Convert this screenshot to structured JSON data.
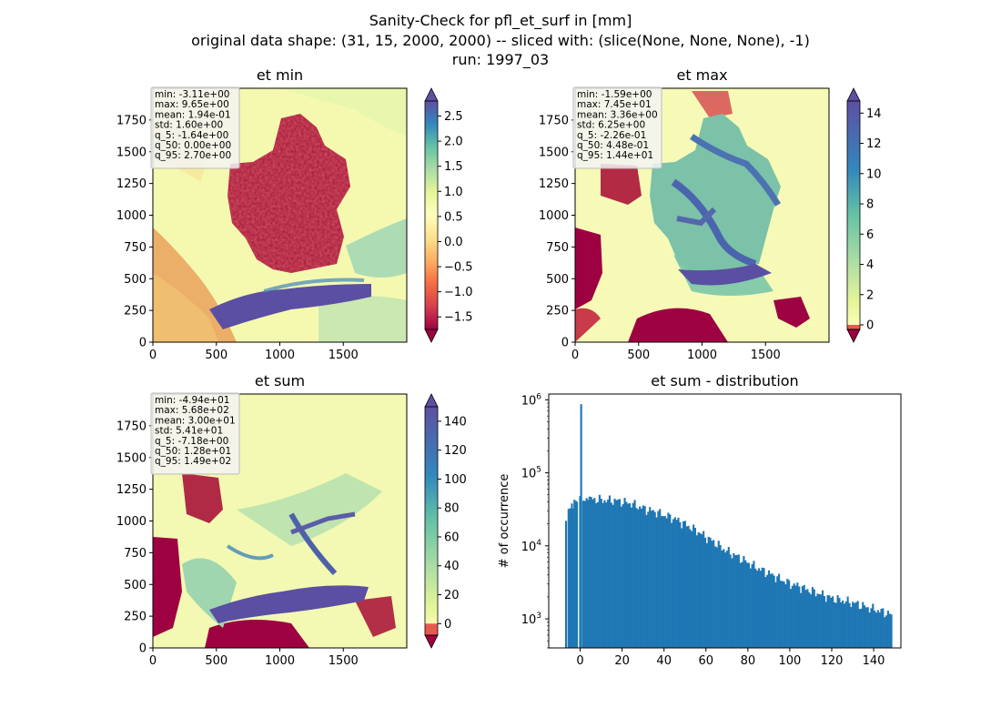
{
  "figure": {
    "title_lines": [
      "Sanity-Check for pfl_et_surf in [mm]",
      "original data shape: (31, 15, 2000, 2000) -- sliced with: (slice(None, None, None), -1)",
      "run: 1997_03"
    ]
  },
  "chart_data": [
    {
      "type": "heatmap",
      "title": "et min",
      "xlim": [
        0,
        2000
      ],
      "ylim": [
        0,
        2000
      ],
      "xticks": [
        0,
        500,
        1000,
        1500
      ],
      "yticks": [
        0,
        250,
        500,
        750,
        1000,
        1250,
        1500,
        1750
      ],
      "colormap": "Spectral",
      "colorbar": {
        "range": [
          -1.75,
          2.8
        ],
        "ticks": [
          -1.5,
          -1.0,
          -0.5,
          0.0,
          0.5,
          1.0,
          1.5,
          2.0,
          2.5
        ],
        "tick_labels": [
          "−1.5",
          "−1.0",
          "−0.5",
          "0.0",
          "0.5",
          "1.0",
          "1.5",
          "2.0",
          "2.5"
        ]
      },
      "stats": [
        "min: -3.11e+00",
        "max: 9.65e+00",
        "mean: 1.94e-01",
        "std: 1.60e+00",
        "q_5: -1.64e+00",
        "q_50: 0.00e+00",
        "q_95: 2.70e+00"
      ]
    },
    {
      "type": "heatmap",
      "title": "et max",
      "xlim": [
        0,
        2000
      ],
      "ylim": [
        0,
        2000
      ],
      "xticks": [
        0,
        500,
        1000,
        1500
      ],
      "yticks": [
        0,
        250,
        500,
        750,
        1000,
        1250,
        1500,
        1750
      ],
      "colormap": "Spectral",
      "colorbar": {
        "range": [
          -0.3,
          14.8
        ],
        "ticks": [
          0,
          2,
          4,
          6,
          8,
          10,
          12,
          14
        ],
        "tick_labels": [
          "0",
          "2",
          "4",
          "6",
          "8",
          "10",
          "12",
          "14"
        ]
      },
      "stats": [
        "min: -1.59e+00",
        "max: 7.45e+01",
        "mean: 3.36e+00",
        "std: 6.25e+00",
        "q_5: -2.26e-01",
        "q_50: 4.48e-01",
        "q_95: 1.44e+01"
      ]
    },
    {
      "type": "heatmap",
      "title": "et sum",
      "xlim": [
        0,
        2000
      ],
      "ylim": [
        0,
        2000
      ],
      "xticks": [
        0,
        500,
        1000,
        1500
      ],
      "yticks": [
        0,
        250,
        500,
        750,
        1000,
        1250,
        1500,
        1750
      ],
      "colormap": "Spectral",
      "colorbar": {
        "range": [
          -8,
          150
        ],
        "ticks": [
          0,
          20,
          40,
          60,
          80,
          100,
          120,
          140
        ],
        "tick_labels": [
          "0",
          "20",
          "40",
          "60",
          "80",
          "100",
          "120",
          "140"
        ]
      },
      "stats": [
        "min: -4.94e+01",
        "max: 5.68e+02",
        "mean: 3.00e+01",
        "std: 5.41e+01",
        "q_5: -7.18e+00",
        "q_50: 1.28e+01",
        "q_95: 1.49e+02"
      ]
    },
    {
      "type": "bar",
      "title": "et sum - distribution",
      "ylabel": "# of occurrence",
      "yscale": "log",
      "xlim": [
        -15,
        153
      ],
      "ylim": [
        400,
        1200000
      ],
      "xticks": [
        0,
        20,
        40,
        60,
        80,
        100,
        120,
        140
      ],
      "ytick_exponents": [
        3,
        4,
        5,
        6
      ],
      "bar_color": "#1f77b4",
      "bin_width": 0.8,
      "bins": [
        [
          -7.2,
          22000
        ],
        [
          -6,
          31000
        ],
        [
          -4,
          35000
        ],
        [
          -2,
          40000
        ],
        [
          -0.5,
          48000
        ],
        [
          0,
          870000
        ],
        [
          1,
          45000
        ],
        [
          4,
          44000
        ],
        [
          8,
          43000
        ],
        [
          12,
          42000
        ],
        [
          16,
          42000
        ],
        [
          20,
          40000
        ],
        [
          24,
          38000
        ],
        [
          28,
          34000
        ],
        [
          32,
          31000
        ],
        [
          36,
          29000
        ],
        [
          40,
          26000
        ],
        [
          44,
          24000
        ],
        [
          48,
          21000
        ],
        [
          52,
          18000
        ],
        [
          56,
          15500
        ],
        [
          60,
          13000
        ],
        [
          64,
          11000
        ],
        [
          68,
          9000
        ],
        [
          72,
          7800
        ],
        [
          76,
          6800
        ],
        [
          80,
          5800
        ],
        [
          84,
          5000
        ],
        [
          88,
          4400
        ],
        [
          92,
          3900
        ],
        [
          96,
          3400
        ],
        [
          100,
          3000
        ],
        [
          104,
          2800
        ],
        [
          108,
          2500
        ],
        [
          112,
          2300
        ],
        [
          116,
          2100
        ],
        [
          120,
          1900
        ],
        [
          124,
          1800
        ],
        [
          128,
          1700
        ],
        [
          132,
          1600
        ],
        [
          136,
          1450
        ],
        [
          140,
          1350
        ],
        [
          144,
          1250
        ],
        [
          148,
          1150
        ]
      ]
    }
  ]
}
